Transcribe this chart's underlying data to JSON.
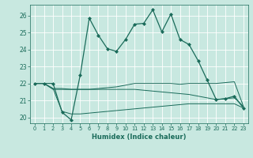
{
  "xlabel": "Humidex (Indice chaleur)",
  "bg_color": "#c8e8e0",
  "grid_color": "#ffffff",
  "line_color": "#1a6b5a",
  "xlim": [
    -0.5,
    23.5
  ],
  "ylim": [
    19.65,
    26.65
  ],
  "yticks": [
    20,
    21,
    22,
    23,
    24,
    25,
    26
  ],
  "xticks": [
    0,
    1,
    2,
    3,
    4,
    5,
    6,
    7,
    8,
    9,
    10,
    11,
    12,
    13,
    14,
    15,
    16,
    17,
    18,
    19,
    20,
    21,
    22,
    23
  ],
  "line1_x": [
    0,
    1,
    2,
    3,
    4,
    5,
    6,
    7,
    8,
    9,
    10,
    11,
    12,
    13,
    14,
    15,
    16,
    17,
    18,
    19,
    20,
    21,
    22,
    23
  ],
  "line1_y": [
    22.0,
    22.0,
    22.0,
    20.3,
    19.85,
    22.5,
    25.85,
    24.85,
    24.05,
    23.9,
    24.6,
    25.5,
    25.55,
    26.35,
    25.05,
    26.1,
    24.6,
    24.3,
    23.35,
    22.2,
    21.05,
    21.1,
    21.25,
    20.55
  ],
  "line2_x": [
    0,
    1,
    2,
    3,
    4,
    5,
    6,
    7,
    8,
    9,
    10,
    11,
    12,
    13,
    14,
    15,
    16,
    17,
    18,
    19,
    20,
    21,
    22,
    23
  ],
  "line2_y": [
    22.0,
    22.0,
    21.7,
    21.7,
    21.65,
    21.65,
    21.65,
    21.65,
    21.65,
    21.65,
    21.65,
    21.65,
    21.6,
    21.55,
    21.5,
    21.45,
    21.4,
    21.35,
    21.25,
    21.15,
    21.05,
    21.1,
    21.15,
    20.65
  ],
  "line3_x": [
    0,
    1,
    2,
    3,
    4,
    5,
    6,
    7,
    8,
    9,
    10,
    11,
    12,
    13,
    14,
    15,
    16,
    17,
    18,
    19,
    20,
    21,
    22,
    23
  ],
  "line3_y": [
    22.0,
    22.0,
    21.65,
    21.65,
    21.65,
    21.65,
    21.65,
    21.7,
    21.75,
    21.8,
    21.9,
    22.0,
    22.0,
    22.0,
    22.0,
    22.0,
    21.95,
    22.0,
    22.0,
    22.0,
    22.0,
    22.05,
    22.1,
    20.65
  ],
  "line4_x": [
    0,
    1,
    2,
    3,
    4,
    5,
    6,
    7,
    8,
    9,
    10,
    11,
    12,
    13,
    14,
    15,
    16,
    17,
    18,
    19,
    20,
    21,
    22,
    23
  ],
  "line4_y": [
    22.0,
    22.0,
    21.7,
    20.35,
    20.2,
    20.2,
    20.25,
    20.3,
    20.35,
    20.4,
    20.45,
    20.5,
    20.55,
    20.6,
    20.65,
    20.7,
    20.75,
    20.8,
    20.8,
    20.8,
    20.8,
    20.8,
    20.8,
    20.55
  ]
}
